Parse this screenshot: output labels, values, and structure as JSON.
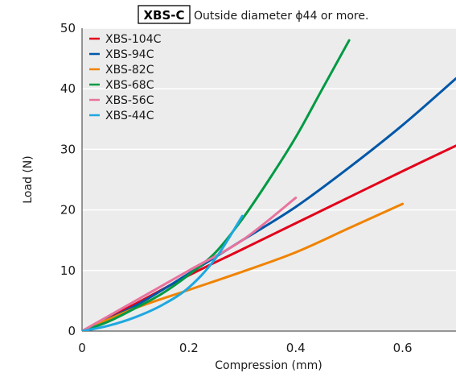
{
  "chart_data": {
    "type": "line",
    "title_box": "XBS-C",
    "title": "Outside diameter ϕ44 or more.",
    "xlabel": "Compression (mm)",
    "ylabel": "Load (N)",
    "xlim": [
      0,
      0.7
    ],
    "ylim": [
      0,
      50
    ],
    "x_ticks": [
      0,
      0.2,
      0.4,
      0.6
    ],
    "x_tick_labels": [
      "0",
      "0.2",
      "0.4",
      "0.6"
    ],
    "y_ticks": [
      0,
      10,
      20,
      30,
      40,
      50
    ],
    "y_tick_labels": [
      "0",
      "10",
      "20",
      "30",
      "40",
      "50"
    ],
    "grid": "horizontal",
    "background": "#ececec",
    "legend_position": "top-left",
    "series": [
      {
        "name": "XBS-104C",
        "color": "#e2001a",
        "points": [
          [
            0,
            0
          ],
          [
            0.1,
            4.5
          ],
          [
            0.2,
            9.2
          ],
          [
            0.3,
            13.5
          ],
          [
            0.4,
            17.8
          ],
          [
            0.5,
            22.1
          ],
          [
            0.6,
            26.4
          ],
          [
            0.7,
            30.6
          ]
        ]
      },
      {
        "name": "XBS-94C",
        "color": "#0057a8",
        "points": [
          [
            0,
            0
          ],
          [
            0.1,
            4.2
          ],
          [
            0.2,
            9.5
          ],
          [
            0.3,
            15.0
          ],
          [
            0.4,
            20.5
          ],
          [
            0.5,
            27.0
          ],
          [
            0.6,
            34.0
          ],
          [
            0.7,
            41.7
          ]
        ]
      },
      {
        "name": "XBS-82C",
        "color": "#f08300",
        "points": [
          [
            0,
            0
          ],
          [
            0.1,
            3.8
          ],
          [
            0.2,
            6.8
          ],
          [
            0.3,
            9.8
          ],
          [
            0.4,
            13.0
          ],
          [
            0.5,
            17.0
          ],
          [
            0.6,
            21.0
          ]
        ]
      },
      {
        "name": "XBS-68C",
        "color": "#009a44",
        "points": [
          [
            0,
            0
          ],
          [
            0.05,
            1.6
          ],
          [
            0.1,
            3.8
          ],
          [
            0.15,
            6.2
          ],
          [
            0.2,
            9.3
          ],
          [
            0.25,
            13.0
          ],
          [
            0.3,
            18.5
          ],
          [
            0.35,
            25.0
          ],
          [
            0.4,
            32.0
          ],
          [
            0.45,
            40.0
          ],
          [
            0.5,
            48.0
          ]
        ]
      },
      {
        "name": "XBS-56C",
        "color": "#e8739e",
        "points": [
          [
            0,
            0
          ],
          [
            0.1,
            5.0
          ],
          [
            0.2,
            10.0
          ],
          [
            0.3,
            15.0
          ],
          [
            0.4,
            22.0
          ]
        ]
      },
      {
        "name": "XBS-44C",
        "color": "#1ea8e0",
        "points": [
          [
            0,
            0
          ],
          [
            0.05,
            0.9
          ],
          [
            0.1,
            2.3
          ],
          [
            0.15,
            4.3
          ],
          [
            0.2,
            7.2
          ],
          [
            0.25,
            12.0
          ],
          [
            0.3,
            19.0
          ]
        ]
      }
    ]
  }
}
